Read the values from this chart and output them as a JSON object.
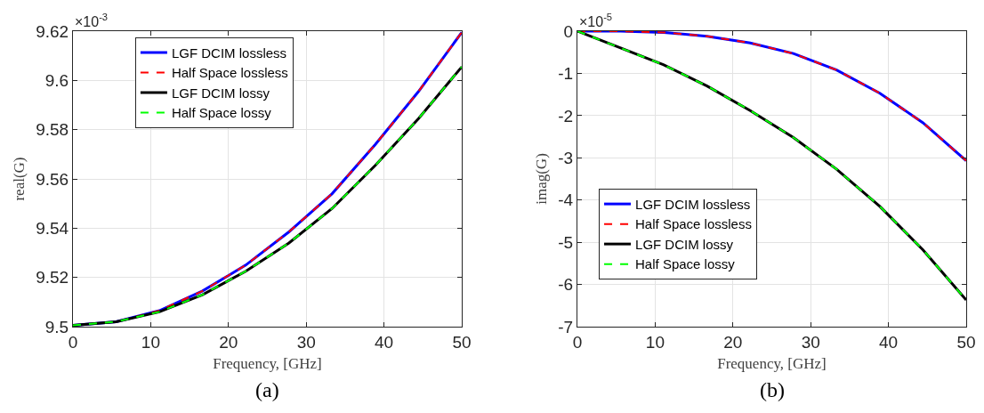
{
  "chart_data": [
    {
      "type": "line",
      "xlabel": "Frequency, [GHz]",
      "ylabel": "real(G)",
      "x": [
        0,
        5.56,
        11.11,
        16.67,
        22.22,
        27.78,
        33.33,
        38.89,
        44.44,
        50
      ],
      "series": [
        {
          "name": "LGF DCIM lossless",
          "color": "#0000ff",
          "line_style": "solid",
          "values": [
            9.5005,
            9.502,
            9.5065,
            9.5145,
            9.525,
            9.5385,
            9.554,
            9.574,
            9.5955,
            9.6195
          ]
        },
        {
          "name": "Half Space lossless",
          "color": "#ff0000",
          "line_style": "dashed",
          "values": [
            9.5005,
            9.502,
            9.5065,
            9.5145,
            9.525,
            9.5385,
            9.554,
            9.574,
            9.5955,
            9.6195
          ]
        },
        {
          "name": "LGF DCIM lossy",
          "color": "#000000",
          "line_style": "solid",
          "values": [
            9.5005,
            9.502,
            9.506,
            9.513,
            9.5225,
            9.534,
            9.548,
            9.5655,
            9.5845,
            9.6055
          ]
        },
        {
          "name": "Half Space lossy",
          "color": "#00ff00",
          "line_style": "dashed",
          "values": [
            9.5005,
            9.502,
            9.506,
            9.513,
            9.5225,
            9.534,
            9.548,
            9.5655,
            9.5845,
            9.6055
          ]
        }
      ],
      "xlim": [
        0,
        50
      ],
      "xticks": [
        0,
        10,
        20,
        30,
        40,
        50
      ],
      "ylim": [
        9.5,
        9.62
      ],
      "yticks": [
        9.5,
        9.52,
        9.54,
        9.56,
        9.58,
        9.6,
        9.62
      ],
      "grid": true,
      "legend": "top",
      "marker": "none",
      "annotations": [
        "×10$^{-3}$",
        "(a)"
      ]
    },
    {
      "type": "line",
      "xlabel": "Frequency, [GHz]",
      "ylabel": "imag(G)",
      "x": [
        0,
        5.56,
        11.11,
        16.67,
        22.22,
        27.78,
        33.33,
        38.89,
        44.44,
        50
      ],
      "series": [
        {
          "name": "LGF DCIM lossless",
          "color": "#0000ff",
          "line_style": "solid",
          "values": [
            0,
            0,
            -0.03,
            -0.12,
            -0.28,
            -0.53,
            -0.92,
            -1.47,
            -2.17,
            -3.07
          ]
        },
        {
          "name": "Half Space lossless",
          "color": "#ff0000",
          "line_style": "dashed",
          "values": [
            0,
            0,
            -0.03,
            -0.12,
            -0.28,
            -0.53,
            -0.92,
            -1.47,
            -2.17,
            -3.07
          ]
        },
        {
          "name": "LGF DCIM lossy",
          "color": "#000000",
          "line_style": "solid",
          "values": [
            0,
            -0.4,
            -0.8,
            -1.3,
            -1.88,
            -2.52,
            -3.27,
            -4.15,
            -5.18,
            -6.37
          ]
        },
        {
          "name": "Half Space lossy",
          "color": "#00ff00",
          "line_style": "dashed",
          "values": [
            0,
            -0.4,
            -0.8,
            -1.3,
            -1.88,
            -2.52,
            -3.27,
            -4.15,
            -5.18,
            -6.37
          ]
        }
      ],
      "xlim": [
        0,
        50
      ],
      "xticks": [
        0,
        10,
        20,
        30,
        40,
        50
      ],
      "ylim": [
        -7,
        0
      ],
      "yticks": [
        -7,
        -6,
        -5,
        -4,
        -3,
        -2,
        -1,
        0
      ],
      "grid": true,
      "legend": "bottom left",
      "marker": "none",
      "annotations": [
        "×10$^{-5}$",
        "(b)"
      ]
    }
  ]
}
